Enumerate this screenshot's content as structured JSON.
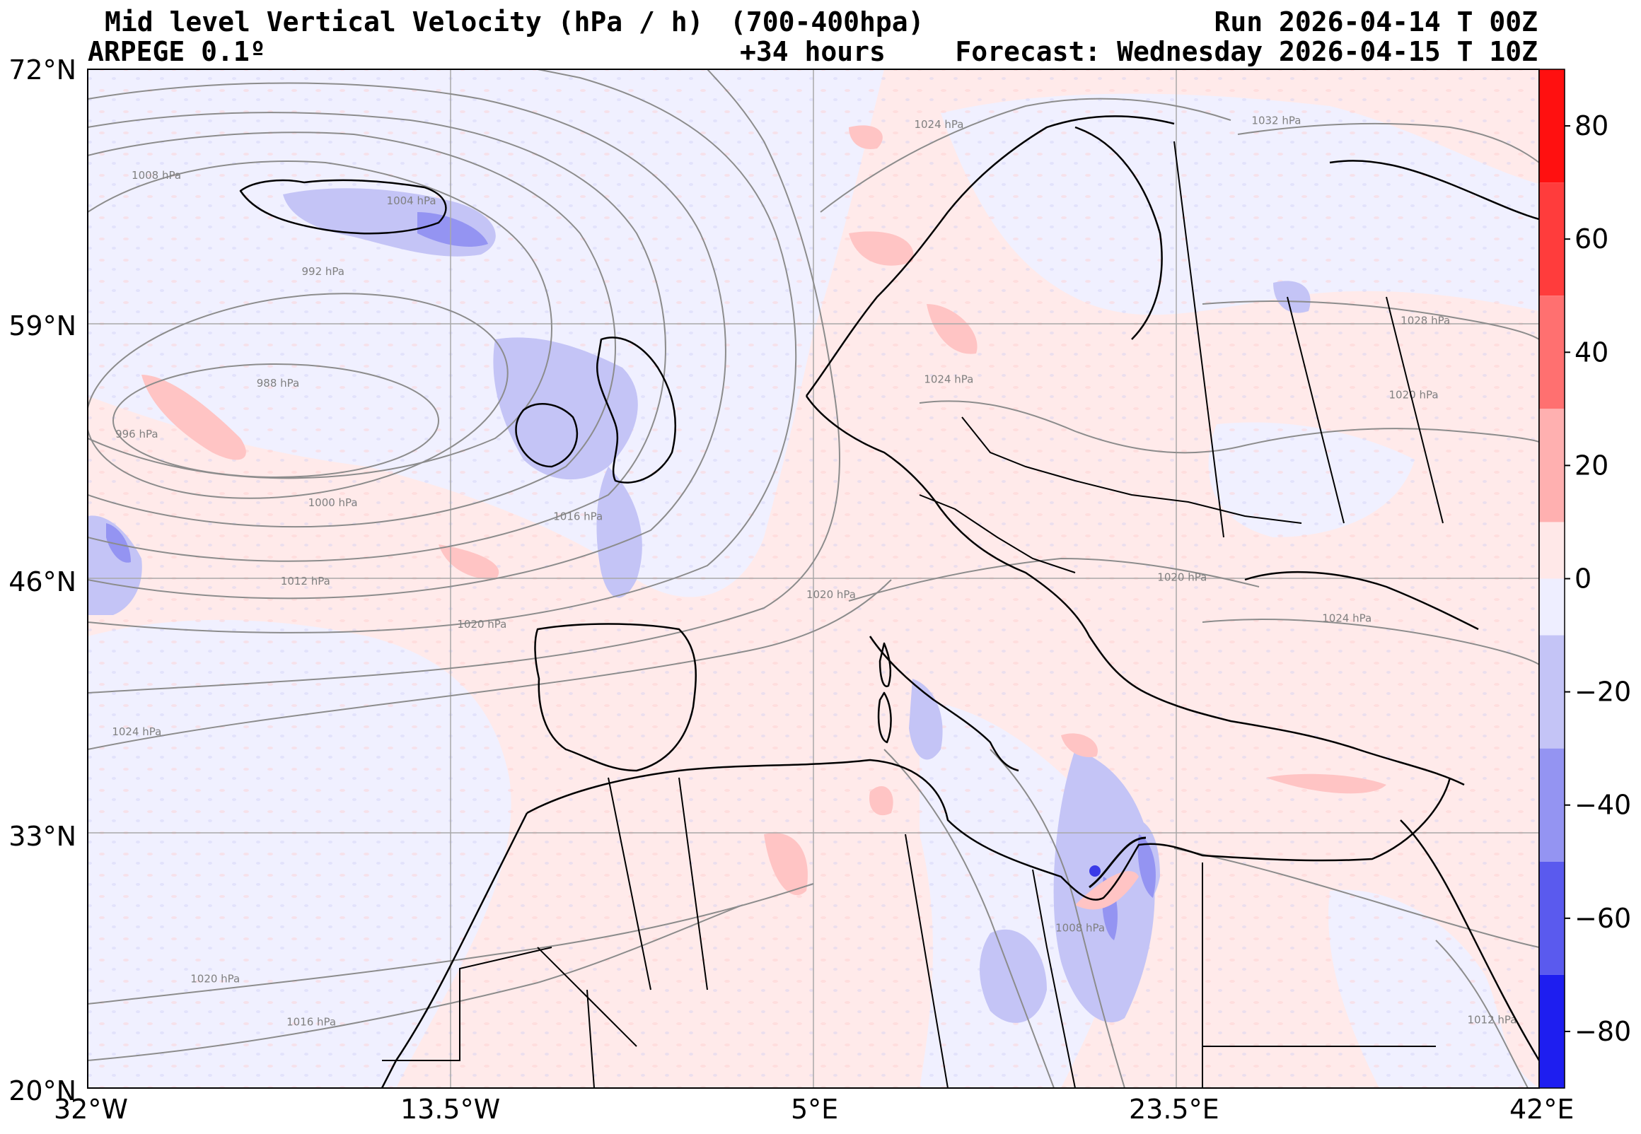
{
  "header": {
    "title": "Mid level Vertical Velocity (hPa / h)",
    "level": "(700-400hpa)",
    "run": "Run 2026-04-14 T 00Z",
    "model": "ARPEGE 0.1º",
    "lead": "+34 hours",
    "forecast": "Forecast: Wednesday 2026-04-15 T 10Z"
  },
  "map": {
    "lon_range": [
      -32,
      42
    ],
    "lat_range": [
      20,
      72
    ],
    "lat_ticks": [
      "72°N",
      "59°N",
      "46°N",
      "33°N",
      "20°N"
    ],
    "lon_ticks": [
      "32°W",
      "13.5°W",
      "5°E",
      "23.5°E",
      "42°E"
    ],
    "grid": true,
    "colors": {
      "background_ascent": "#f0f0ff",
      "background_descent": "#ffeaea",
      "coast": "#000000",
      "isobar": "#8c8c8c"
    },
    "isobar_labels": [
      {
        "text": "1008 hPa",
        "lon": -28.5,
        "lat": 66.4
      },
      {
        "text": "1004 hPa",
        "lon": -15.5,
        "lat": 65.1
      },
      {
        "text": "992 hPa",
        "lon": -20.0,
        "lat": 61.5
      },
      {
        "text": "988 hPa",
        "lon": -22.3,
        "lat": 55.8
      },
      {
        "text": "996 hPa",
        "lon": -29.5,
        "lat": 53.2
      },
      {
        "text": "1000 hPa",
        "lon": -19.5,
        "lat": 49.7
      },
      {
        "text": "1016 hPa",
        "lon": -7.0,
        "lat": 49.0
      },
      {
        "text": "1012 hPa",
        "lon": -20.9,
        "lat": 45.7
      },
      {
        "text": "1020 hPa",
        "lon": -11.9,
        "lat": 43.5
      },
      {
        "text": "1024 hPa",
        "lon": -29.5,
        "lat": 38.0
      },
      {
        "text": "1020 hPa",
        "lon": -25.5,
        "lat": 25.4
      },
      {
        "text": "1016 hPa",
        "lon": -20.6,
        "lat": 23.2
      },
      {
        "text": "1024 hPa",
        "lon": 11.4,
        "lat": 69.0
      },
      {
        "text": "1032 hPa",
        "lon": 28.6,
        "lat": 69.2
      },
      {
        "text": "1028 hPa",
        "lon": 36.2,
        "lat": 59.0
      },
      {
        "text": "1024 hPa",
        "lon": 11.9,
        "lat": 56.0
      },
      {
        "text": "1020 hPa",
        "lon": 35.6,
        "lat": 55.2
      },
      {
        "text": "1020 hPa",
        "lon": 23.8,
        "lat": 45.9
      },
      {
        "text": "1024 hPa",
        "lon": 32.2,
        "lat": 43.8
      },
      {
        "text": "1020 hPa",
        "lon": 5.9,
        "lat": 45.0
      },
      {
        "text": "1008 hPa",
        "lon": 18.6,
        "lat": 28.0
      },
      {
        "text": "1012 hPa",
        "lon": 39.6,
        "lat": 23.3
      }
    ]
  },
  "colorbar": {
    "ticks": [
      {
        "label": "80",
        "value": 80
      },
      {
        "label": "60",
        "value": 60
      },
      {
        "label": "40",
        "value": 40
      },
      {
        "label": "20",
        "value": 20
      },
      {
        "label": "0",
        "value": 0
      },
      {
        "label": "−20",
        "value": -20
      },
      {
        "label": "−40",
        "value": -40
      },
      {
        "label": "−60",
        "value": -60
      },
      {
        "label": "−80",
        "value": -80
      }
    ],
    "range": [
      -90,
      90
    ],
    "bands": [
      {
        "from": 70,
        "to": 90,
        "color": "#ff1010"
      },
      {
        "from": 50,
        "to": 70,
        "color": "#ff3c3c"
      },
      {
        "from": 30,
        "to": 50,
        "color": "#ff7070"
      },
      {
        "from": 10,
        "to": 30,
        "color": "#ffb0b0"
      },
      {
        "from": 0,
        "to": 10,
        "color": "#ffe8e8"
      },
      {
        "from": -10,
        "to": 0,
        "color": "#eeeeff"
      },
      {
        "from": -30,
        "to": -10,
        "color": "#c4c4f6"
      },
      {
        "from": -50,
        "to": -30,
        "color": "#9494f2"
      },
      {
        "from": -70,
        "to": -50,
        "color": "#5a5aee"
      },
      {
        "from": -90,
        "to": -70,
        "color": "#1e1ef0"
      }
    ]
  }
}
